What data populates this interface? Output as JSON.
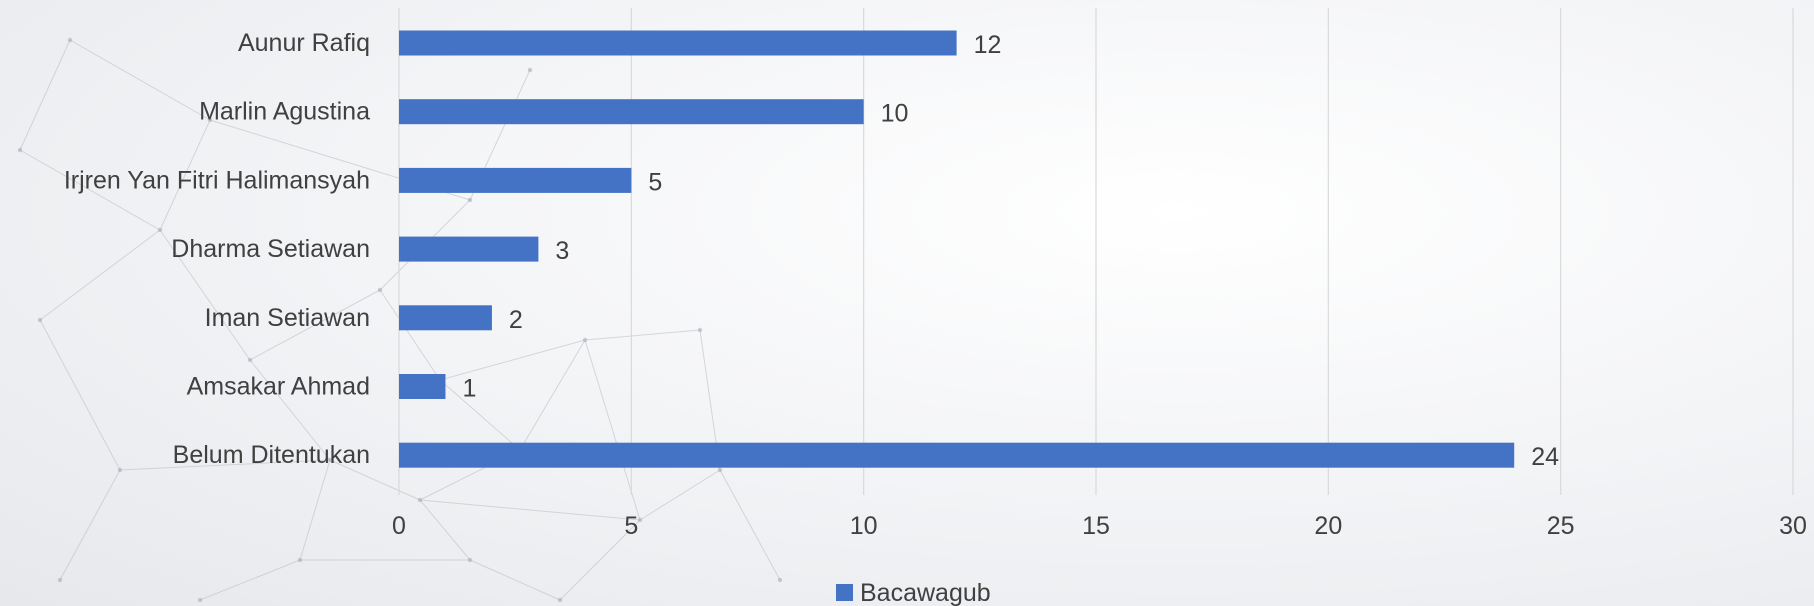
{
  "chart_data": {
    "type": "bar",
    "orientation": "horizontal",
    "categories": [
      "Aunur Rafiq",
      "Marlin Agustina",
      "Irjren Yan Fitri Halimansyah",
      "Dharma Setiawan",
      "Iman Setiawan",
      "Amsakar Ahmad",
      "Belum Ditentukan"
    ],
    "series": [
      {
        "name": "Bacawagub",
        "values": [
          12,
          10,
          5,
          3,
          2,
          1,
          24
        ],
        "color": "#4472c4"
      }
    ],
    "xlim": [
      0,
      30
    ],
    "xticks": [
      0,
      5,
      10,
      15,
      20,
      25,
      30
    ],
    "grid": true,
    "legend_position": "bottom",
    "data_labels": true
  }
}
